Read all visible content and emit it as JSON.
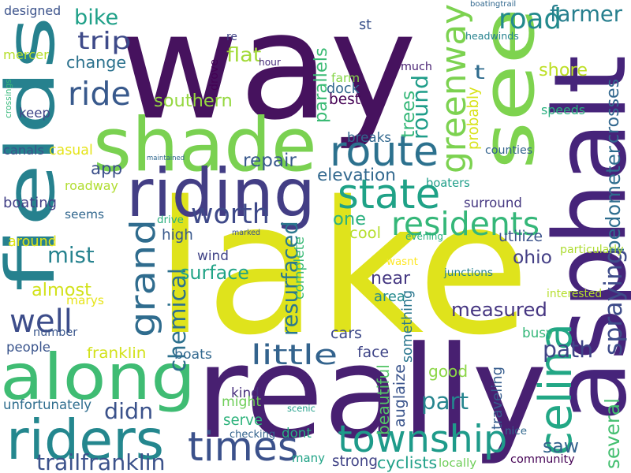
{
  "colors": {
    "background": "#ffffff",
    "palette": [
      "#440154",
      "#482878",
      "#3e4a89",
      "#31688e",
      "#26828e",
      "#1f9e89",
      "#35b779",
      "#6ece58",
      "#b5de2b",
      "#fde725"
    ]
  },
  "words": [
    {
      "text": "lake",
      "color": "#dfe31c"
    },
    {
      "text": "way",
      "color": "#46125e"
    },
    {
      "text": "really",
      "color": "#482071"
    },
    {
      "text": "asphalt",
      "color": "#46247a"
    },
    {
      "text": "see",
      "color": "#7ed34f"
    },
    {
      "text": "shade",
      "color": "#7ad151"
    },
    {
      "text": "fields",
      "color": "#26818e"
    },
    {
      "text": "along",
      "color": "#3fbc73"
    },
    {
      "text": "riding",
      "color": "#433e85"
    },
    {
      "text": "riders",
      "color": "#24878e"
    },
    {
      "text": "greenway",
      "color": "#7cd250"
    },
    {
      "text": "celina",
      "color": "#22a785"
    },
    {
      "text": "township",
      "color": "#1e9b8a"
    },
    {
      "text": "times",
      "color": "#3b518b"
    },
    {
      "text": "route",
      "color": "#2c718e"
    },
    {
      "text": "state",
      "color": "#1fa287"
    },
    {
      "text": "residents",
      "color": "#35b779"
    },
    {
      "text": "grand",
      "color": "#2f6c8e"
    },
    {
      "text": "worth",
      "color": "#3e4989"
    },
    {
      "text": "ride",
      "color": "#38598c"
    },
    {
      "text": "road",
      "color": "#238a8d"
    },
    {
      "text": "well",
      "color": "#3d4d8a"
    },
    {
      "text": "little",
      "color": "#33638d"
    },
    {
      "text": "measured",
      "color": "#453581"
    },
    {
      "text": "spraying",
      "color": "#3e4c8a"
    },
    {
      "text": "chemical",
      "color": "#2d708e"
    },
    {
      "text": "resurfaced",
      "color": "#2a788e"
    },
    {
      "text": "pedometer",
      "color": "#2e6d8e"
    },
    {
      "text": "crosses",
      "color": "#31678e"
    },
    {
      "text": "farmer",
      "color": "#277f8e"
    },
    {
      "text": "path",
      "color": "#404688"
    },
    {
      "text": "part",
      "color": "#25858e"
    },
    {
      "text": "saw",
      "color": "#33638d"
    },
    {
      "text": "didn",
      "color": "#3b528b"
    },
    {
      "text": "trailfranklin",
      "color": "#3b528b"
    },
    {
      "text": "trip",
      "color": "#3e4a89"
    },
    {
      "text": "bike",
      "color": "#1fa088"
    },
    {
      "text": "app",
      "color": "#3c4f8a"
    },
    {
      "text": "mist",
      "color": "#26828e"
    },
    {
      "text": "elevation",
      "color": "#31688e"
    },
    {
      "text": "surface",
      "color": "#20a386"
    },
    {
      "text": "one",
      "color": "#2ab07f"
    },
    {
      "text": "ohio",
      "color": "#433e85"
    },
    {
      "text": "several",
      "color": "#44bf70"
    },
    {
      "text": "almost",
      "color": "#d2e21b"
    },
    {
      "text": "round",
      "color": "#1e9d89"
    },
    {
      "text": "shore",
      "color": "#bddf26"
    },
    {
      "text": "parallels",
      "color": "#3bbb75"
    },
    {
      "text": "repair",
      "color": "#38588c"
    },
    {
      "text": "southern",
      "color": "#95d840"
    },
    {
      "text": "change",
      "color": "#2c728e"
    },
    {
      "text": "flat",
      "color": "#a2da37"
    },
    {
      "text": "good",
      "color": "#8bd646"
    },
    {
      "text": "near",
      "color": "#453882"
    },
    {
      "text": "farm",
      "color": "#86d549"
    },
    {
      "text": "trees",
      "color": "#35b779"
    },
    {
      "text": "t",
      "color": "#2f6c8e"
    },
    {
      "text": "dock",
      "color": "#31678e"
    },
    {
      "text": "best",
      "color": "#440154"
    },
    {
      "text": "much",
      "color": "#482173"
    },
    {
      "text": "designed",
      "color": "#3b528b"
    },
    {
      "text": "mercer",
      "color": "#b5de2b"
    },
    {
      "text": "keep",
      "color": "#404588"
    },
    {
      "text": "canals",
      "color": "#3b528b"
    },
    {
      "text": "casual",
      "color": "#e5e419"
    },
    {
      "text": "roadway",
      "color": "#b0dd2f"
    },
    {
      "text": "boating",
      "color": "#424086"
    },
    {
      "text": "around",
      "color": "#dde318"
    },
    {
      "text": "seems",
      "color": "#31678e"
    },
    {
      "text": "high",
      "color": "#38588c"
    },
    {
      "text": "wind",
      "color": "#414487"
    },
    {
      "text": "cool",
      "color": "#b5de2b"
    },
    {
      "text": "marys",
      "color": "#e7e419"
    },
    {
      "text": "number",
      "color": "#39568c"
    },
    {
      "text": "people",
      "color": "#3a548c"
    },
    {
      "text": "franklin",
      "color": "#d2e21b"
    },
    {
      "text": "boats",
      "color": "#31688e"
    },
    {
      "text": "kind",
      "color": "#472f7d"
    },
    {
      "text": "might",
      "color": "#6ece58"
    },
    {
      "text": "serve",
      "color": "#2eb37c"
    },
    {
      "text": "checking",
      "color": "#33638d"
    },
    {
      "text": "dont",
      "color": "#27ad81"
    },
    {
      "text": "many",
      "color": "#20a386"
    },
    {
      "text": "strong",
      "color": "#414487"
    },
    {
      "text": "cyclists",
      "color": "#1fa088"
    },
    {
      "text": "unfortunately",
      "color": "#2e6d8e"
    },
    {
      "text": "cars",
      "color": "#3e4a89"
    },
    {
      "text": "face",
      "color": "#404688"
    },
    {
      "text": "beautiful",
      "color": "#54c568"
    },
    {
      "text": "auglaize",
      "color": "#3a548c"
    },
    {
      "text": "something",
      "color": "#2a768e"
    },
    {
      "text": "traveling",
      "color": "#365c8d"
    },
    {
      "text": "busy",
      "color": "#35b779"
    },
    {
      "text": "community",
      "color": "#440154"
    },
    {
      "text": "area",
      "color": "#238a8d"
    },
    {
      "text": "complete",
      "color": "#3aba76"
    },
    {
      "text": "breaks",
      "color": "#31688e"
    },
    {
      "text": "boaters",
      "color": "#1f9e89"
    },
    {
      "text": "surround",
      "color": "#453781"
    },
    {
      "text": "utilize",
      "color": "#3b528b"
    },
    {
      "text": "speeds",
      "color": "#29af7f"
    },
    {
      "text": "probably",
      "color": "#d8e219"
    },
    {
      "text": "counties",
      "color": "#33638d"
    },
    {
      "text": "headwinds",
      "color": "#26828e"
    },
    {
      "text": "st",
      "color": "#3b528b"
    },
    {
      "text": "boatingtrail",
      "color": "#31688e"
    },
    {
      "text": "junctions",
      "color": "#26828e"
    },
    {
      "text": "interested",
      "color": "#b5de2b"
    },
    {
      "text": "particularly",
      "color": "#addc30"
    },
    {
      "text": "evening",
      "color": "#2ab07f"
    },
    {
      "text": "wasnt",
      "color": "#fde725"
    },
    {
      "text": "drive",
      "color": "#29af7f"
    },
    {
      "text": "marked",
      "color": "#3b528b"
    },
    {
      "text": "maintained",
      "color": "#31688e"
    },
    {
      "text": "hour",
      "color": "#472d7b"
    },
    {
      "text": "drove",
      "color": "#440154"
    },
    {
      "text": "re",
      "color": "#414487"
    },
    {
      "text": "crossings",
      "color": "#35b779"
    },
    {
      "text": "scenic",
      "color": "#1f9e89"
    },
    {
      "text": "nice",
      "color": "#31688e"
    },
    {
      "text": "locally",
      "color": "#6ece58"
    }
  ]
}
